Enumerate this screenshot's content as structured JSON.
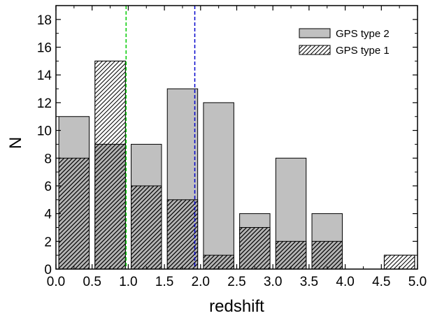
{
  "chart_data": {
    "type": "bar",
    "xlabel": "redshift",
    "ylabel": "N",
    "xlim": [
      0.0,
      5.0
    ],
    "ylim": [
      0,
      19
    ],
    "xticks": [
      "0.0",
      "0.5",
      "1.0",
      "1.5",
      "2.0",
      "2.5",
      "3.0",
      "3.5",
      "4.0",
      "4.5",
      "5.0"
    ],
    "yticks": [
      "0",
      "2",
      "4",
      "6",
      "8",
      "10",
      "12",
      "14",
      "16",
      "18"
    ],
    "bins": [
      {
        "x0": 0.0,
        "x1": 0.5
      },
      {
        "x0": 0.5,
        "x1": 1.0
      },
      {
        "x0": 1.0,
        "x1": 1.5
      },
      {
        "x0": 1.5,
        "x1": 2.0
      },
      {
        "x0": 2.0,
        "x1": 2.5
      },
      {
        "x0": 2.5,
        "x1": 3.0
      },
      {
        "x0": 3.0,
        "x1": 3.5
      },
      {
        "x0": 3.5,
        "x1": 4.0
      },
      {
        "x0": 4.0,
        "x1": 4.5
      },
      {
        "x0": 4.5,
        "x1": 5.0
      }
    ],
    "series": [
      {
        "name": "GPS type 2",
        "total": [
          11,
          15,
          9,
          13,
          12,
          4,
          8,
          4,
          0,
          1
        ],
        "color": "#c0c0c0",
        "pattern": "solid"
      },
      {
        "name": "GPS type 1",
        "values": [
          8,
          9,
          6,
          5,
          1,
          3,
          2,
          2,
          0,
          1
        ],
        "pattern": "hatched"
      }
    ],
    "vlines": [
      {
        "x": 0.97,
        "color": "#00cc00",
        "style": "dashed"
      },
      {
        "x": 1.92,
        "color": "#0000cc",
        "style": "dashed"
      }
    ],
    "legend": [
      {
        "label": "GPS type 2",
        "pattern": "solid"
      },
      {
        "label": "GPS type 1",
        "pattern": "hatched"
      }
    ],
    "legend_position": "top-right",
    "grid": false
  }
}
